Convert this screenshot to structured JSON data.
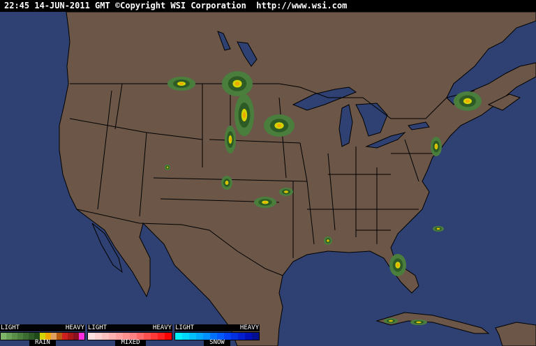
{
  "header": {
    "timestamp": "22:45 14-JUN-2011 GMT",
    "copyright": "©Copyright WSI Corporation",
    "url": "http://www.wsi.com"
  },
  "colors": {
    "ocean": "#2e4172",
    "land": "#6b5648",
    "border": "#000000"
  },
  "legend": [
    {
      "name": "RAIN",
      "light": "LIGHT",
      "heavy": "HEAVY",
      "colors": [
        "#7fb56a",
        "#6aa158",
        "#5a8f4a",
        "#4a7e3c",
        "#3c6c30",
        "#2e5a25",
        "#1f4a1a",
        "#d4d400",
        "#f0a800",
        "#e0a060",
        "#b85a10",
        "#cc2020",
        "#a81818",
        "#8a1020",
        "#ff30e0"
      ]
    },
    {
      "name": "MIXED",
      "light": "LIGHT",
      "heavy": "HEAVY",
      "colors": [
        "#ffe0e0",
        "#ffd0d0",
        "#ffc0c0",
        "#ffb0b0",
        "#ffa0a0",
        "#ff9090",
        "#ff8080",
        "#ff6868",
        "#ff5050",
        "#ff3838",
        "#ff2020",
        "#ff0000"
      ]
    },
    {
      "name": "SNOW",
      "light": "LIGHT",
      "heavy": "HEAVY",
      "colors": [
        "#00f0ff",
        "#00d8ff",
        "#00c0ff",
        "#00a8ff",
        "#0090ff",
        "#0070ff",
        "#0058ff",
        "#0040f0",
        "#0030e0",
        "#0020d0",
        "#0010b8",
        "#001090"
      ]
    }
  ]
}
